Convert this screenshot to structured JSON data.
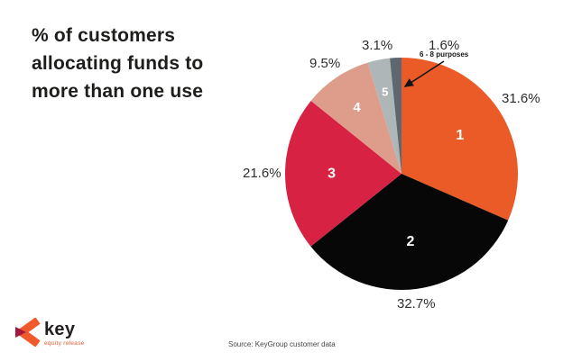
{
  "title": {
    "line1": "% of customers",
    "line2": "allocating funds to",
    "line3": "more than one use"
  },
  "source_note": "Source: KeyGroup customer data",
  "logo": {
    "wordmark": "key",
    "tagline": "equity release",
    "colors": {
      "orange": "#F0592B",
      "maroon": "#A6193E",
      "text": "#231F20"
    }
  },
  "chart_data": {
    "type": "pie",
    "title": "% of customers allocating funds to more than one use",
    "start_angle_deg": 0,
    "direction": "clockwise",
    "legend_position": "none",
    "inside_label_color": "#FFFFFF",
    "slices": [
      {
        "label": "1",
        "value": 31.6,
        "display": "31.6%",
        "color": "#EB5B28"
      },
      {
        "label": "2",
        "value": 32.7,
        "display": "32.7%",
        "color": "#070707"
      },
      {
        "label": "3",
        "value": 21.6,
        "display": "21.6%",
        "color": "#D72243"
      },
      {
        "label": "4",
        "value": 9.5,
        "display": "9.5%",
        "color": "#DE9C8B"
      },
      {
        "label": "5",
        "value": 3.1,
        "display": "3.1%",
        "color": "#AFB6B8"
      },
      {
        "label": "6 - 8 purposes",
        "value": 1.6,
        "display": "1.6%",
        "color": "#5C6770",
        "callout": true
      }
    ]
  }
}
